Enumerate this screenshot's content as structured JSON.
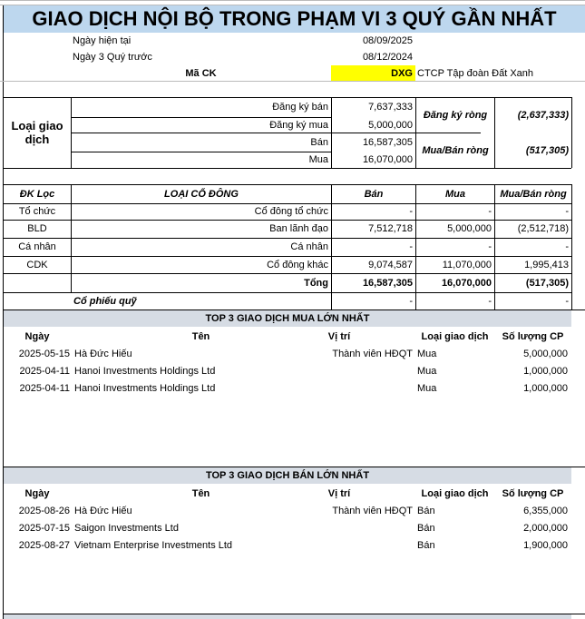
{
  "title": "GIAO DỊCH NỘI BỘ TRONG PHẠM VI 3 QUÝ GẦN NHẤT",
  "info": {
    "current_date_label": "Ngày hiện tại",
    "current_date": "08/09/2025",
    "prev_date_label": "Ngày 3 Quý trước",
    "prev_date": "08/12/2024",
    "ticker_label": "Mã CK",
    "ticker": "DXG",
    "company": "CTCP Tập đoàn Đất Xanh"
  },
  "colors": {
    "title_bg": "#BDD7EE",
    "ticker_bg": "#FFFF00",
    "section_bg": "#D6DCE4"
  },
  "summary": {
    "group_label": "Loại giao dịch",
    "rows": [
      {
        "label": "Đăng ký bán",
        "value": "7,637,333"
      },
      {
        "label": "Đăng ký mua",
        "value": "5,000,000"
      },
      {
        "label": "Bán",
        "value": "16,587,305"
      },
      {
        "label": "Mua",
        "value": "16,070,000"
      }
    ],
    "net_reg_label": "Đăng ký ròng",
    "net_reg": "(2,637,333)",
    "net_trade_label": "Mua/Bán ròng",
    "net_trade": "(517,305)"
  },
  "shareholders": {
    "headers": [
      "ĐK Lọc",
      "LOẠI CỔ ĐÔNG",
      "Bán",
      "Mua",
      "Mua/Bán ròng"
    ],
    "rows": [
      [
        "Tổ chức",
        "Cổ đông tổ chức",
        "-",
        "-",
        "-"
      ],
      [
        "BLD",
        "Ban lãnh đạo",
        "7,512,718",
        "5,000,000",
        "(2,512,718)"
      ],
      [
        "Cá nhân",
        "Cá nhân",
        "-",
        "-",
        "-"
      ],
      [
        "CDK",
        "Cổ đông khác",
        "9,074,587",
        "11,070,000",
        "1,995,413"
      ]
    ],
    "total": [
      "",
      "Tổng",
      "16,587,305",
      "16,070,000",
      "(517,305)"
    ],
    "treasury": [
      "Cổ phiếu quỹ",
      "-",
      "-",
      "-"
    ]
  },
  "top_buy": {
    "title": "TOP 3 GIAO DỊCH MUA LỚN NHẤT",
    "headers": [
      "Ngày",
      "Tên",
      "Vị trí",
      "Loại giao dịch",
      "Số lượng CP"
    ],
    "rows": [
      [
        "2025-05-15",
        "Hà Đức Hiếu",
        "Thành viên HĐQT",
        "Mua",
        "5,000,000"
      ],
      [
        "2025-04-11",
        "Hanoi Investments Holdings Ltd",
        "",
        "Mua",
        "1,000,000"
      ],
      [
        "2025-04-11",
        "Hanoi Investments Holdings Ltd",
        "",
        "Mua",
        "1,000,000"
      ]
    ]
  },
  "top_sell": {
    "title": "TOP 3 GIAO DỊCH BÁN LỚN NHẤT",
    "headers": [
      "Ngày",
      "Tên",
      "Vị trí",
      "Loại giao dịch",
      "Số lượng CP"
    ],
    "rows": [
      [
        "2025-08-26",
        "Hà Đức Hiếu",
        "Thành viên HĐQT",
        "Bán",
        "6,355,000"
      ],
      [
        "2025-07-15",
        "Saigon Investments Ltd",
        "",
        "Bán",
        "2,000,000"
      ],
      [
        "2025-08-27",
        "Vietnam Enterprise Investments Ltd",
        "",
        "Bán",
        "1,900,000"
      ]
    ]
  }
}
